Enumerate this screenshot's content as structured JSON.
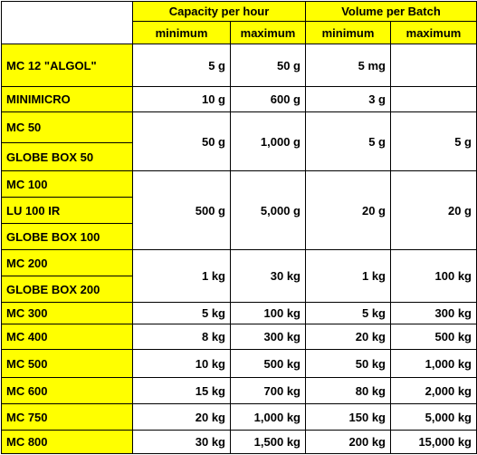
{
  "header": {
    "capacity": "Capacity per hour",
    "volume": "Volume per Batch",
    "cap_min": "minimum",
    "cap_max": "maximum",
    "vol_min": "minimum",
    "vol_max": "maximum"
  },
  "models": [
    "MC 12 \"ALGOL\"",
    "MINIMICRO",
    "MC 50",
    "GLOBE BOX 50",
    "MC 100",
    "LU 100 IR",
    "GLOBE BOX 100",
    "MC 200",
    "GLOBE BOX 200",
    "MC 300",
    "MC 400",
    "MC 500",
    "MC 600",
    "MC 750",
    "MC 800"
  ],
  "groups": [
    {
      "cap_min": "5 g",
      "cap_max": "50 g",
      "vol_min": "5 mg",
      "vol_max": ""
    },
    {
      "cap_min": "10 g",
      "cap_max": "600 g",
      "vol_min": "3 g",
      "vol_max": ""
    },
    {
      "cap_min": "50 g",
      "cap_max": "1,000 g",
      "vol_min": "5 g",
      "vol_max": "5 g"
    },
    {
      "cap_min": "500 g",
      "cap_max": "5,000 g",
      "vol_min": "20 g",
      "vol_max": "20 g"
    },
    {
      "cap_min": "1 kg",
      "cap_max": "30 kg",
      "vol_min": "1 kg",
      "vol_max": "100 kg"
    },
    {
      "cap_min": "5 kg",
      "cap_max": "100 kg",
      "vol_min": "5 kg",
      "vol_max": "300 kg"
    },
    {
      "cap_min": "8 kg",
      "cap_max": "300 kg",
      "vol_min": "20 kg",
      "vol_max": "500 kg"
    },
    {
      "cap_min": "10 kg",
      "cap_max": "500 kg",
      "vol_min": "50 kg",
      "vol_max": "1,000 kg"
    },
    {
      "cap_min": "15 kg",
      "cap_max": "700 kg",
      "vol_min": "80 kg",
      "vol_max": "2,000 kg"
    },
    {
      "cap_min": "20 kg",
      "cap_max": "1,000 kg",
      "vol_min": "150 kg",
      "vol_max": "5,000 kg"
    },
    {
      "cap_min": "30 kg",
      "cap_max": "1,500 kg",
      "vol_min": "200 kg",
      "vol_max": "15,000 kg"
    }
  ],
  "colors": {
    "header_fill": "#ffff00",
    "grid": "#000000"
  }
}
